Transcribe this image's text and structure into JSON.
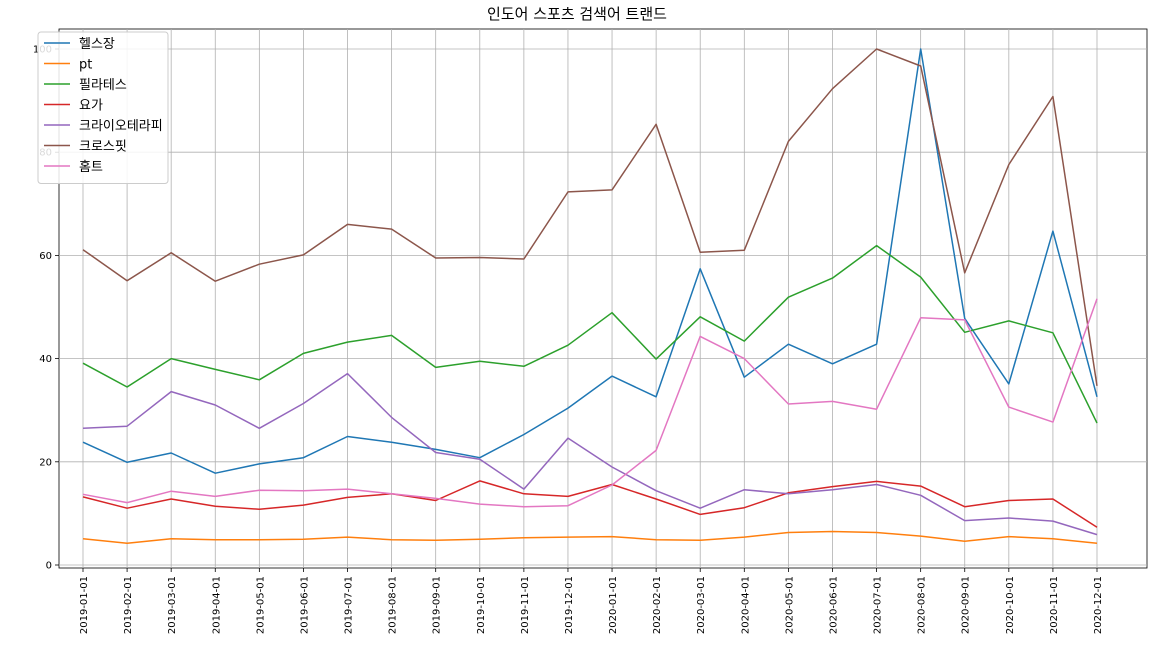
{
  "chart_data": {
    "type": "line",
    "title": "인도어 스포츠 검색어 트랜드",
    "xlabel": "",
    "ylabel": "",
    "ylim": [
      0,
      100
    ],
    "yticks": [
      0,
      20,
      40,
      60,
      80,
      100
    ],
    "grid": true,
    "legend_position": "top-left",
    "x": [
      "2019-01-01",
      "2019-02-01",
      "2019-03-01",
      "2019-04-01",
      "2019-05-01",
      "2019-06-01",
      "2019-07-01",
      "2019-08-01",
      "2019-09-01",
      "2019-10-01",
      "2019-11-01",
      "2019-12-01",
      "2020-01-01",
      "2020-02-01",
      "2020-03-01",
      "2020-04-01",
      "2020-05-01",
      "2020-06-01",
      "2020-07-01",
      "2020-08-01",
      "2020-09-01",
      "2020-10-01",
      "2020-11-01",
      "2020-12-01"
    ],
    "series": [
      {
        "name": "헬스장",
        "color": "#1f77b4",
        "values": [
          23.8,
          19.9,
          21.7,
          17.8,
          19.6,
          20.8,
          24.9,
          23.8,
          22.4,
          20.8,
          25.3,
          30.4,
          36.6,
          32.6,
          57.4,
          36.4,
          42.8,
          39.0,
          42.8,
          100.0,
          47.8,
          35.1,
          64.7,
          32.6
        ]
      },
      {
        "name": "pt",
        "color": "#ff7f0e",
        "values": [
          5.1,
          4.2,
          5.1,
          4.9,
          4.9,
          5.0,
          5.4,
          4.9,
          4.8,
          5.0,
          5.3,
          5.4,
          5.5,
          4.9,
          4.8,
          5.4,
          6.3,
          6.5,
          6.3,
          5.6,
          4.6,
          5.5,
          5.1,
          4.2
        ]
      },
      {
        "name": "필라테스",
        "color": "#2ca02c",
        "values": [
          39.1,
          34.5,
          40.0,
          37.9,
          35.9,
          41.0,
          43.2,
          44.5,
          38.3,
          39.5,
          38.5,
          42.6,
          48.9,
          39.9,
          48.1,
          43.4,
          51.9,
          55.6,
          61.9,
          55.8,
          45.1,
          47.3,
          45.0,
          27.5
        ]
      },
      {
        "name": "요가",
        "color": "#d62728",
        "values": [
          13.2,
          11.0,
          12.8,
          11.4,
          10.8,
          11.6,
          13.1,
          13.8,
          12.5,
          16.3,
          13.8,
          13.3,
          15.6,
          12.8,
          9.8,
          11.1,
          14.0,
          15.2,
          16.2,
          15.3,
          11.3,
          12.5,
          12.8,
          7.3
        ]
      },
      {
        "name": "크라이오테라피",
        "color": "#9467bd",
        "values": [
          26.5,
          26.9,
          33.6,
          31.0,
          26.5,
          31.3,
          37.1,
          28.6,
          21.8,
          20.5,
          14.7,
          24.6,
          19.0,
          14.4,
          11.0,
          14.6,
          13.8,
          14.6,
          15.6,
          13.5,
          8.6,
          9.1,
          8.5,
          5.9
        ]
      },
      {
        "name": "크로스핏",
        "color": "#8c564b",
        "values": [
          61.1,
          55.1,
          60.5,
          55.0,
          58.3,
          60.1,
          66.0,
          65.1,
          59.5,
          59.6,
          59.3,
          72.3,
          72.7,
          85.4,
          60.6,
          61.0,
          82.1,
          92.3,
          100.0,
          96.7,
          56.6,
          77.6,
          90.8,
          34.7
        ]
      },
      {
        "name": "홈트",
        "color": "#e377c2",
        "values": [
          13.7,
          12.1,
          14.3,
          13.3,
          14.5,
          14.4,
          14.7,
          13.8,
          12.9,
          11.8,
          11.3,
          11.5,
          15.5,
          22.2,
          44.3,
          40.0,
          31.2,
          31.7,
          30.2,
          47.9,
          47.5,
          30.6,
          27.7,
          51.6
        ]
      }
    ]
  }
}
